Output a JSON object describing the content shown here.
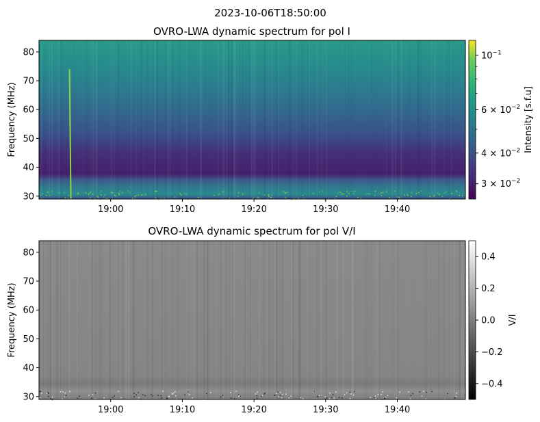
{
  "figure": {
    "suptitle": "2023-10-06T18:50:00"
  },
  "chart_data": [
    {
      "type": "heatmap",
      "title": "OVRO-LWA dynamic spectrum for pol I",
      "xlabel": "",
      "ylabel": "Frequency (MHz)",
      "x_tick_labels": [
        "19:00",
        "19:10",
        "19:20",
        "19:30",
        "19:40"
      ],
      "x_ticks_minutes_after_1850": [
        10,
        20,
        30,
        40,
        50
      ],
      "xlim_minutes_after_1850": [
        0,
        59.5
      ],
      "y_ticks": [
        30,
        40,
        50,
        60,
        70,
        80
      ],
      "ylim": [
        29,
        84
      ],
      "colorbar": {
        "label": "Intensity [s.f.u]",
        "scale": "log",
        "colormap": "viridis",
        "range": [
          0.026,
          0.115
        ],
        "tick_values": [
          0.1,
          0.06,
          0.04,
          0.03
        ],
        "tick_labels": [
          {
            "base": "10",
            "exp": "−1"
          },
          {
            "base": "6 × 10",
            "exp": "−2"
          },
          {
            "base": "4 × 10",
            "exp": "−2"
          },
          {
            "base": "3 × 10",
            "exp": "−2"
          }
        ]
      },
      "features": {
        "burst_time_minutes_after_1850": 4.4,
        "low_freq_band_mhz": [
          29,
          35
        ]
      }
    },
    {
      "type": "heatmap",
      "title": "OVRO-LWA dynamic spectrum for pol V/I",
      "xlabel": "",
      "ylabel": "Frequency (MHz)",
      "x_tick_labels": [
        "19:00",
        "19:10",
        "19:20",
        "19:30",
        "19:40"
      ],
      "x_ticks_minutes_after_1850": [
        10,
        20,
        30,
        40,
        50
      ],
      "xlim_minutes_after_1850": [
        0,
        59.5
      ],
      "y_ticks": [
        30,
        40,
        50,
        60,
        70,
        80
      ],
      "ylim": [
        29,
        84
      ],
      "colorbar": {
        "label": "V/I",
        "scale": "linear",
        "colormap": "gray",
        "range": [
          -0.5,
          0.5
        ],
        "tick_values": [
          0.4,
          0.2,
          0.0,
          -0.2,
          -0.4
        ],
        "tick_labels": [
          "0.4",
          "0.2",
          "0.0",
          "−0.2",
          "−0.4"
        ]
      }
    }
  ]
}
